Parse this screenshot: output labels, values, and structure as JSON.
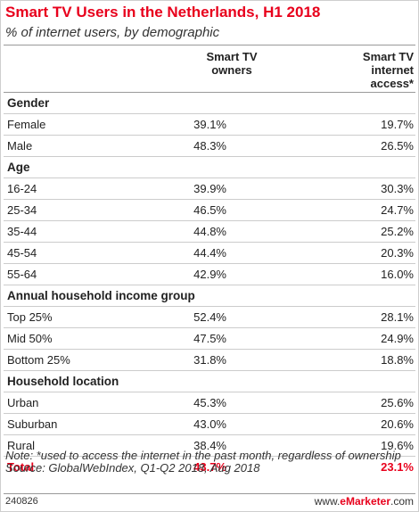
{
  "header": {
    "title": "Smart TV Users in the Netherlands, H1 2018",
    "subtitle": "% of internet users, by demographic"
  },
  "columns": {
    "c1": [
      "Smart TV",
      "owners"
    ],
    "c2": [
      "Smart TV",
      "internet",
      "access*"
    ]
  },
  "chart_data": {
    "type": "table",
    "title": "Smart TV Users in the Netherlands, H1 2018",
    "subtitle": "% of internet users, by demographic",
    "columns": [
      "Smart TV owners",
      "Smart TV internet access*"
    ],
    "rows": [
      {
        "kind": "group",
        "label": "Gender"
      },
      {
        "kind": "row",
        "label": "Female",
        "values": [
          "39.1%",
          "19.7%"
        ]
      },
      {
        "kind": "row",
        "label": "Male",
        "values": [
          "48.3%",
          "26.5%"
        ]
      },
      {
        "kind": "group",
        "label": "Age"
      },
      {
        "kind": "row",
        "label": "16-24",
        "values": [
          "39.9%",
          "30.3%"
        ]
      },
      {
        "kind": "row",
        "label": "25-34",
        "values": [
          "46.5%",
          "24.7%"
        ]
      },
      {
        "kind": "row",
        "label": "35-44",
        "values": [
          "44.8%",
          "25.2%"
        ]
      },
      {
        "kind": "row",
        "label": "45-54",
        "values": [
          "44.4%",
          "20.3%"
        ]
      },
      {
        "kind": "row",
        "label": "55-64",
        "values": [
          "42.9%",
          "16.0%"
        ]
      },
      {
        "kind": "group",
        "label": "Annual household income group"
      },
      {
        "kind": "row",
        "label": "Top 25%",
        "values": [
          "52.4%",
          "28.1%"
        ]
      },
      {
        "kind": "row",
        "label": "Mid 50%",
        "values": [
          "47.5%",
          "24.9%"
        ]
      },
      {
        "kind": "row",
        "label": "Bottom 25%",
        "values": [
          "31.8%",
          "18.8%"
        ]
      },
      {
        "kind": "group",
        "label": "Household location"
      },
      {
        "kind": "row",
        "label": "Urban",
        "values": [
          "45.3%",
          "25.6%"
        ]
      },
      {
        "kind": "row",
        "label": "Suburban",
        "values": [
          "43.0%",
          "20.6%"
        ]
      },
      {
        "kind": "row",
        "label": "Rural",
        "values": [
          "38.4%",
          "19.6%"
        ]
      },
      {
        "kind": "total",
        "label": "Total",
        "values": [
          "43.7%",
          "23.1%"
        ]
      }
    ]
  },
  "notes": {
    "note": "Note: *used to access the internet in the past month, regardless of ownership",
    "source": "Source: GlobalWebIndex, Q1-Q2 2018, Aug 2018"
  },
  "footer": {
    "code": "240826",
    "brand_prefix": "www.",
    "brand_name": "eMarketer",
    "brand_suffix": ".com"
  },
  "colors": {
    "accent": "#e8001c",
    "rule": "#999999",
    "row_border": "#cccccc"
  }
}
